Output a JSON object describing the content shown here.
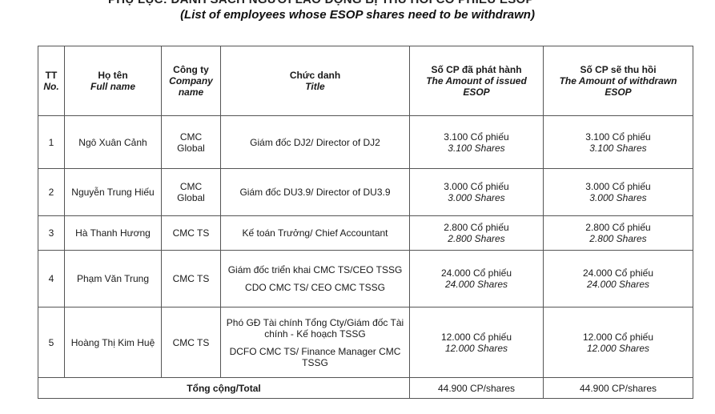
{
  "document": {
    "top_cut_text": "PHỤ LỤC: DANH SÁCH NGƯỜI LAO ĐỘNG BỊ THU HỒI CỔ PHIẾU ESOP",
    "subtitle": "(List of employees whose ESOP shares need to be withdrawn)"
  },
  "table": {
    "headers": {
      "no_vi": "TT",
      "no_en": "No.",
      "name_vi": "Họ tên",
      "name_en": "Full name",
      "company_vi": "Công ty",
      "company_en": "Company name",
      "title_vi": "Chức danh",
      "title_en": "Title",
      "issued_vi": "Số CP đã phát hành",
      "issued_en": "The Amount of issued ESOP",
      "withdrawn_vi": "Số CP sẽ thu hồi",
      "withdrawn_en": "The Amount of withdrawn ESOP"
    },
    "rows": [
      {
        "no": "1",
        "name": "Ngô Xuân Cảnh",
        "company": "CMC Global",
        "title": "Giám đốc DJ2/ Director of DJ2",
        "issued_vi": "3.100 Cổ phiếu",
        "issued_en": "3.100 Shares",
        "withdrawn_vi": "3.100 Cổ phiếu",
        "withdrawn_en": "3.100 Shares"
      },
      {
        "no": "2",
        "name": "Nguyễn Trung Hiếu",
        "company": "CMC Global",
        "title": "Giám đốc DU3.9/ Director of DU3.9",
        "issued_vi": "3.000 Cổ phiếu",
        "issued_en": "3.000 Shares",
        "withdrawn_vi": "3.000 Cổ phiếu",
        "withdrawn_en": "3.000 Shares"
      },
      {
        "no": "3",
        "name": "Hà Thanh Hương",
        "company": "CMC TS",
        "title": "Kế toán Trưởng/ Chief Accountant",
        "issued_vi": "2.800 Cổ phiếu",
        "issued_en": "2.800 Shares",
        "withdrawn_vi": "2.800 Cổ phiếu",
        "withdrawn_en": "2.800 Shares"
      },
      {
        "no": "4",
        "name": "Phạm Văn Trung",
        "company": "CMC TS",
        "title_line1": "Giám đốc triển khai CMC TS/CEO TSSG",
        "title_line2": "CDO CMC TS/ CEO CMC TSSG",
        "issued_vi": "24.000 Cổ phiếu",
        "issued_en": "24.000 Shares",
        "withdrawn_vi": "24.000 Cổ phiếu",
        "withdrawn_en": "24.000 Shares"
      },
      {
        "no": "5",
        "name": "Hoàng Thị Kim Huệ",
        "company": "CMC TS",
        "title_line1": "Phó GĐ Tài chính Tổng Cty/Giám đốc Tài chính - Kế hoạch TSSG",
        "title_line2": "DCFO CMC TS/ Finance Manager CMC TSSG",
        "issued_vi": "12.000 Cổ phiếu",
        "issued_en": "12.000 Shares",
        "withdrawn_vi": "12.000 Cổ phiếu",
        "withdrawn_en": "12.000 Shares"
      }
    ],
    "total": {
      "label": "Tổng cộng/Total",
      "issued": "44.900 CP/shares",
      "withdrawn": "44.900 CP/shares"
    }
  }
}
